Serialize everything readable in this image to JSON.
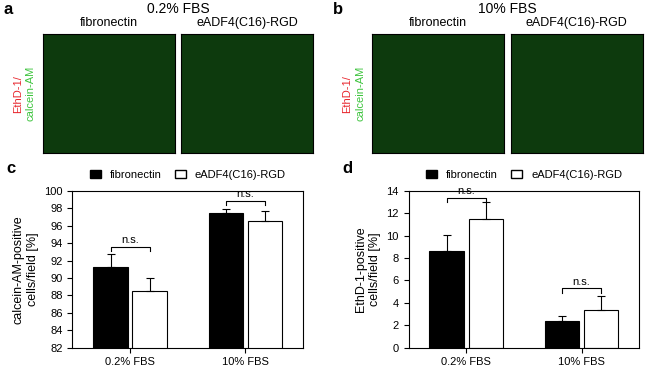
{
  "panels": [
    {
      "label": "a",
      "header": "0.2% FBS",
      "images": [
        "fibronectin",
        "eADF4(C16)-RGD"
      ],
      "stain": [
        "EthD-1/",
        "calcein-AM"
      ],
      "stain_colors": [
        "#e8262d",
        "#3ec43e"
      ]
    },
    {
      "label": "b",
      "header": "10% FBS",
      "images": [
        "fibronectin",
        "eADF4(C16)-RGD"
      ],
      "stain": [
        "EthD-1/",
        "calcein-AM"
      ],
      "stain_colors": [
        "#e8262d",
        "#3ec43e"
      ]
    }
  ],
  "chart_data": [
    {
      "type": "bar",
      "panel": "c",
      "y_label": "calcein-AM-positive\ncells/field [%]",
      "categories": [
        "0.2% FBS",
        "10% FBS"
      ],
      "series": [
        {
          "name": "fibronectin",
          "color": "#000000",
          "values": [
            91.3,
            97.5
          ],
          "errors": [
            1.5,
            0.4
          ]
        },
        {
          "name": "eADF4(C16)-RGD",
          "color": "#ffffff",
          "values": [
            88.5,
            96.5
          ],
          "errors": [
            1.5,
            1.2
          ]
        }
      ],
      "ylim": [
        82,
        100
      ],
      "yticks": [
        82,
        84,
        86,
        88,
        90,
        92,
        94,
        96,
        98,
        100
      ],
      "legend": "upper center",
      "significance": [
        {
          "category": "0.2% FBS",
          "label": "n.s.",
          "y": 93.6
        },
        {
          "category": "10% FBS",
          "label": "n.s.",
          "y": 98.9
        }
      ]
    },
    {
      "type": "bar",
      "panel": "d",
      "y_label": "EthD-1-positive\ncells/field [%]",
      "categories": [
        "0.2% FBS",
        "10% FBS"
      ],
      "series": [
        {
          "name": "fibronectin",
          "color": "#000000",
          "values": [
            8.6,
            2.4
          ],
          "errors": [
            1.5,
            0.4
          ]
        },
        {
          "name": "eADF4(C16)-RGD",
          "color": "#ffffff",
          "values": [
            11.5,
            3.4
          ],
          "errors": [
            1.5,
            1.2
          ]
        }
      ],
      "ylim": [
        0,
        14
      ],
      "yticks": [
        0,
        2,
        4,
        6,
        8,
        10,
        12,
        14
      ],
      "legend": "upper center",
      "significance": [
        {
          "category": "0.2% FBS",
          "label": "n.s.",
          "y": 13.4
        },
        {
          "category": "10% FBS",
          "label": "n.s.",
          "y": 5.3
        }
      ]
    }
  ]
}
